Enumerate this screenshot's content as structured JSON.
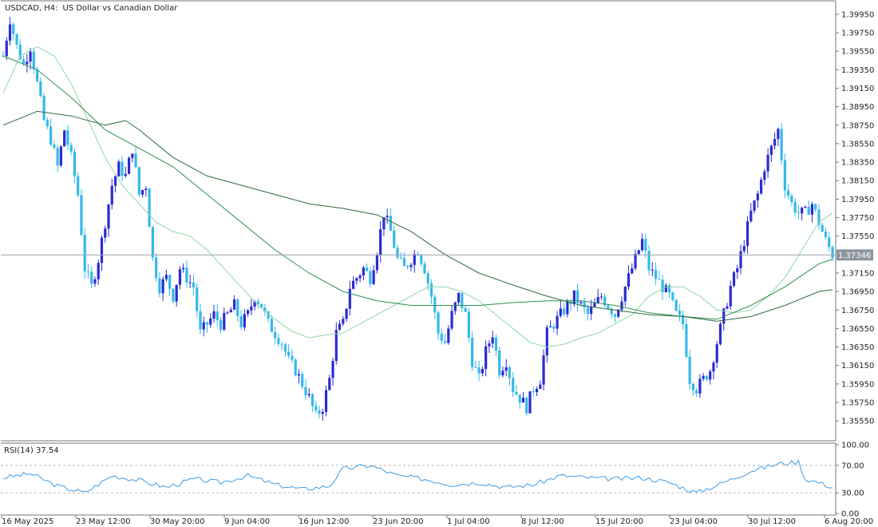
{
  "chart_data": [
    {
      "type": "candlestick",
      "symbol": "USDCAD, H4:",
      "description": "US Dollar vs Canadian Dollar",
      "current_price": 1.37346,
      "current_price_label": "1.37346",
      "ylim": [
        1.3537,
        1.4007
      ],
      "y_ticks": [
        {
          "value": 1.3995,
          "label": "1.39950"
        },
        {
          "value": 1.3975,
          "label": "1.39750"
        },
        {
          "value": 1.3955,
          "label": "1.39550"
        },
        {
          "value": 1.3935,
          "label": "1.39350"
        },
        {
          "value": 1.3915,
          "label": "1.39150"
        },
        {
          "value": 1.3895,
          "label": "1.38950"
        },
        {
          "value": 1.3875,
          "label": "1.38750"
        },
        {
          "value": 1.3855,
          "label": "1.38550"
        },
        {
          "value": 1.3835,
          "label": "1.38350"
        },
        {
          "value": 1.3815,
          "label": "1.38150"
        },
        {
          "value": 1.3795,
          "label": "1.37950"
        },
        {
          "value": 1.3775,
          "label": "1.37750"
        },
        {
          "value": 1.3755,
          "label": "1.37550"
        },
        {
          "value": 1.3715,
          "label": "1.37150"
        },
        {
          "value": 1.3695,
          "label": "1.36950"
        },
        {
          "value": 1.3675,
          "label": "1.36750"
        },
        {
          "value": 1.3655,
          "label": "1.36550"
        },
        {
          "value": 1.3635,
          "label": "1.36350"
        },
        {
          "value": 1.3615,
          "label": "1.36150"
        },
        {
          "value": 1.3595,
          "label": "1.35950"
        },
        {
          "value": 1.3575,
          "label": "1.35750"
        },
        {
          "value": 1.3555,
          "label": "1.35550"
        }
      ],
      "x_labels": [
        "16 May 2025",
        "23 May 12:00",
        "30 May 20:00",
        "9 Jun 04:00",
        "16 Jun 12:00",
        "23 Jun 20:00",
        "1 Jul 04:00",
        "8 Jul 12:00",
        "15 Jul 20:00",
        "23 Jul 04:00",
        "30 Jul 12:00",
        "6 Aug 20:00"
      ],
      "close_path": [
        [
          0,
          1.395
        ],
        [
          2,
          1.399
        ],
        [
          4,
          1.396
        ],
        [
          6,
          1.394
        ],
        [
          8,
          1.396
        ],
        [
          10,
          1.392
        ],
        [
          12,
          1.388
        ],
        [
          14,
          1.386
        ],
        [
          16,
          1.383
        ],
        [
          18,
          1.387
        ],
        [
          20,
          1.384
        ],
        [
          22,
          1.38
        ],
        [
          24,
          1.372
        ],
        [
          26,
          1.37
        ],
        [
          28,
          1.373
        ],
        [
          30,
          1.377
        ],
        [
          32,
          1.381
        ],
        [
          34,
          1.383
        ],
        [
          36,
          1.382
        ],
        [
          38,
          1.385
        ],
        [
          40,
          1.38
        ],
        [
          42,
          1.381
        ],
        [
          44,
          1.373
        ],
        [
          46,
          1.37
        ],
        [
          48,
          1.371
        ],
        [
          50,
          1.369
        ],
        [
          52,
          1.372
        ],
        [
          54,
          1.371
        ],
        [
          56,
          1.37
        ],
        [
          58,
          1.365
        ],
        [
          60,
          1.366
        ],
        [
          62,
          1.367
        ],
        [
          64,
          1.366
        ],
        [
          66,
          1.367
        ],
        [
          68,
          1.368
        ],
        [
          70,
          1.366
        ],
        [
          72,
          1.367
        ],
        [
          74,
          1.369
        ],
        [
          76,
          1.368
        ],
        [
          78,
          1.366
        ],
        [
          80,
          1.365
        ],
        [
          82,
          1.364
        ],
        [
          84,
          1.362
        ],
        [
          86,
          1.361
        ],
        [
          88,
          1.3595
        ],
        [
          90,
          1.358
        ],
        [
          92,
          1.356
        ],
        [
          94,
          1.357
        ],
        [
          96,
          1.36
        ],
        [
          98,
          1.365
        ],
        [
          100,
          1.366
        ],
        [
          102,
          1.37
        ],
        [
          104,
          1.371
        ],
        [
          106,
          1.372
        ],
        [
          108,
          1.371
        ],
        [
          110,
          1.374
        ],
        [
          112,
          1.378
        ],
        [
          114,
          1.376
        ],
        [
          116,
          1.373
        ],
        [
          118,
          1.372
        ],
        [
          120,
          1.373
        ],
        [
          122,
          1.374
        ],
        [
          124,
          1.372
        ],
        [
          126,
          1.369
        ],
        [
          128,
          1.365
        ],
        [
          130,
          1.364
        ],
        [
          132,
          1.367
        ],
        [
          134,
          1.369
        ],
        [
          136,
          1.367
        ],
        [
          138,
          1.362
        ],
        [
          140,
          1.36
        ],
        [
          142,
          1.363
        ],
        [
          144,
          1.365
        ],
        [
          146,
          1.361
        ],
        [
          148,
          1.362
        ],
        [
          150,
          1.359
        ],
        [
          152,
          1.358
        ],
        [
          154,
          1.357
        ],
        [
          156,
          1.359
        ],
        [
          158,
          1.36
        ],
        [
          160,
          1.365
        ],
        [
          162,
          1.366
        ],
        [
          164,
          1.367
        ],
        [
          166,
          1.368
        ],
        [
          168,
          1.369
        ],
        [
          170,
          1.368
        ],
        [
          172,
          1.367
        ],
        [
          174,
          1.368
        ],
        [
          176,
          1.369
        ],
        [
          178,
          1.368
        ],
        [
          180,
          1.367
        ],
        [
          182,
          1.369
        ],
        [
          184,
          1.371
        ],
        [
          186,
          1.373
        ],
        [
          188,
          1.375
        ],
        [
          190,
          1.372
        ],
        [
          192,
          1.371
        ],
        [
          194,
          1.37
        ],
        [
          196,
          1.369
        ],
        [
          198,
          1.367
        ],
        [
          200,
          1.366
        ],
        [
          202,
          1.36
        ],
        [
          204,
          1.359
        ],
        [
          206,
          1.36
        ],
        [
          208,
          1.361
        ],
        [
          210,
          1.364
        ],
        [
          212,
          1.367
        ],
        [
          214,
          1.37
        ],
        [
          216,
          1.372
        ],
        [
          218,
          1.375
        ],
        [
          220,
          1.378
        ],
        [
          222,
          1.38
        ],
        [
          224,
          1.383
        ],
        [
          226,
          1.385
        ],
        [
          228,
          1.387
        ],
        [
          230,
          1.381
        ],
        [
          232,
          1.379
        ],
        [
          234,
          1.378
        ],
        [
          236,
          1.378
        ],
        [
          238,
          1.379
        ],
        [
          240,
          1.377
        ],
        [
          242,
          1.375
        ],
        [
          244,
          1.3735
        ]
      ],
      "ma_fast": [
        [
          0,
          1.391
        ],
        [
          5,
          1.395
        ],
        [
          10,
          1.396
        ],
        [
          15,
          1.395
        ],
        [
          20,
          1.392
        ],
        [
          25,
          1.388
        ],
        [
          30,
          1.384
        ],
        [
          35,
          1.381
        ],
        [
          40,
          1.379
        ],
        [
          45,
          1.377
        ],
        [
          50,
          1.376
        ],
        [
          55,
          1.3755
        ],
        [
          60,
          1.374
        ],
        [
          65,
          1.372
        ],
        [
          70,
          1.37
        ],
        [
          75,
          1.368
        ],
        [
          80,
          1.3665
        ],
        [
          85,
          1.3652
        ],
        [
          90,
          1.3645
        ],
        [
          95,
          1.3648
        ],
        [
          100,
          1.365
        ],
        [
          105,
          1.366
        ],
        [
          110,
          1.367
        ],
        [
          115,
          1.368
        ],
        [
          120,
          1.369
        ],
        [
          125,
          1.37
        ],
        [
          130,
          1.37
        ],
        [
          135,
          1.3695
        ],
        [
          140,
          1.3685
        ],
        [
          145,
          1.367
        ],
        [
          150,
          1.3655
        ],
        [
          155,
          1.364
        ],
        [
          160,
          1.3635
        ],
        [
          165,
          1.3638
        ],
        [
          170,
          1.3645
        ],
        [
          175,
          1.365
        ],
        [
          180,
          1.366
        ],
        [
          185,
          1.367
        ],
        [
          190,
          1.369
        ],
        [
          195,
          1.37
        ],
        [
          200,
          1.37
        ],
        [
          205,
          1.369
        ],
        [
          210,
          1.3675
        ],
        [
          215,
          1.3672
        ],
        [
          220,
          1.3675
        ],
        [
          225,
          1.369
        ],
        [
          230,
          1.371
        ],
        [
          235,
          1.374
        ],
        [
          240,
          1.377
        ],
        [
          244,
          1.378
        ]
      ],
      "ma_medium": [
        [
          0,
          1.395
        ],
        [
          10,
          1.3935
        ],
        [
          20,
          1.3905
        ],
        [
          30,
          1.387
        ],
        [
          40,
          1.385
        ],
        [
          50,
          1.383
        ],
        [
          60,
          1.38
        ],
        [
          70,
          1.377
        ],
        [
          80,
          1.374
        ],
        [
          90,
          1.3715
        ],
        [
          100,
          1.3695
        ],
        [
          110,
          1.3685
        ],
        [
          120,
          1.368
        ],
        [
          130,
          1.368
        ],
        [
          140,
          1.368
        ],
        [
          150,
          1.3683
        ],
        [
          160,
          1.3685
        ],
        [
          170,
          1.3685
        ],
        [
          180,
          1.368
        ],
        [
          190,
          1.3672
        ],
        [
          200,
          1.3668
        ],
        [
          210,
          1.3665
        ],
        [
          220,
          1.368
        ],
        [
          230,
          1.37
        ],
        [
          240,
          1.3725
        ],
        [
          244,
          1.373
        ]
      ],
      "ma_slow": [
        [
          0,
          1.3875
        ],
        [
          10,
          1.389
        ],
        [
          20,
          1.3885
        ],
        [
          30,
          1.3875
        ],
        [
          36,
          1.388
        ],
        [
          40,
          1.387
        ],
        [
          50,
          1.384
        ],
        [
          60,
          1.382
        ],
        [
          70,
          1.381
        ],
        [
          80,
          1.38
        ],
        [
          90,
          1.379
        ],
        [
          100,
          1.3785
        ],
        [
          110,
          1.3778
        ],
        [
          120,
          1.376
        ],
        [
          130,
          1.3735
        ],
        [
          140,
          1.3715
        ],
        [
          150,
          1.3702
        ],
        [
          160,
          1.369
        ],
        [
          170,
          1.368
        ],
        [
          180,
          1.3675
        ],
        [
          190,
          1.367
        ],
        [
          200,
          1.3668
        ],
        [
          210,
          1.3663
        ],
        [
          220,
          1.3668
        ],
        [
          230,
          1.368
        ],
        [
          240,
          1.3695
        ],
        [
          244,
          1.3697
        ]
      ]
    },
    {
      "type": "line",
      "label": "RSI(14) 37.54",
      "ylim": [
        0,
        100
      ],
      "y_ticks": [
        {
          "value": 100,
          "label": "100.00"
        },
        {
          "value": 70,
          "label": "70.00"
        },
        {
          "value": 30,
          "label": "30.00"
        },
        {
          "value": 0,
          "label": "0.00"
        }
      ],
      "levels": [
        70,
        30
      ],
      "values": [
        [
          0,
          52
        ],
        [
          8,
          58
        ],
        [
          16,
          40
        ],
        [
          24,
          30
        ],
        [
          32,
          55
        ],
        [
          40,
          48
        ],
        [
          48,
          38
        ],
        [
          56,
          50
        ],
        [
          64,
          45
        ],
        [
          72,
          55
        ],
        [
          80,
          42
        ],
        [
          88,
          35
        ],
        [
          96,
          40
        ],
        [
          100,
          65
        ],
        [
          108,
          70
        ],
        [
          116,
          55
        ],
        [
          124,
          50
        ],
        [
          132,
          42
        ],
        [
          140,
          45
        ],
        [
          148,
          38
        ],
        [
          156,
          42
        ],
        [
          164,
          55
        ],
        [
          172,
          52
        ],
        [
          180,
          50
        ],
        [
          188,
          52
        ],
        [
          196,
          45
        ],
        [
          204,
          30
        ],
        [
          212,
          45
        ],
        [
          220,
          62
        ],
        [
          228,
          72
        ],
        [
          234,
          75
        ],
        [
          236,
          50
        ],
        [
          240,
          45
        ],
        [
          244,
          38
        ]
      ]
    }
  ]
}
